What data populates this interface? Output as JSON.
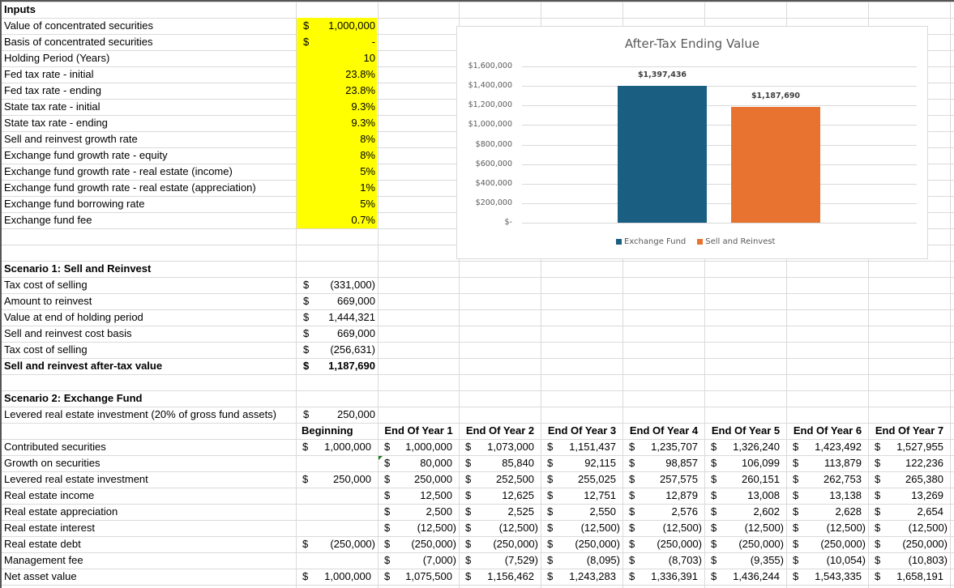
{
  "inputs": {
    "title": "Inputs",
    "rows": [
      {
        "label": "Value of concentrated securities",
        "dollar": "$",
        "value": "1,000,000"
      },
      {
        "label": "Basis of concentrated securities",
        "dollar": "$",
        "value": "-"
      },
      {
        "label": "Holding Period (Years)",
        "dollar": "",
        "value": "10"
      },
      {
        "label": "Fed tax rate - initial",
        "dollar": "",
        "value": "23.8%"
      },
      {
        "label": "Fed tax rate - ending",
        "dollar": "",
        "value": "23.8%"
      },
      {
        "label": "State tax rate - initial",
        "dollar": "",
        "value": "9.3%"
      },
      {
        "label": "State tax rate - ending",
        "dollar": "",
        "value": "9.3%"
      },
      {
        "label": "Sell and reinvest growth rate",
        "dollar": "",
        "value": "8%"
      },
      {
        "label": "Exchange fund growth rate - equity",
        "dollar": "",
        "value": "8%"
      },
      {
        "label": "Exchange fund growth rate - real estate (income)",
        "dollar": "",
        "value": "5%"
      },
      {
        "label": "Exchange fund growth rate - real estate (appreciation)",
        "dollar": "",
        "value": "1%"
      },
      {
        "label": "Exchange fund borrowing rate",
        "dollar": "",
        "value": "5%"
      },
      {
        "label": "Exchange fund fee",
        "dollar": "",
        "value": "0.7%"
      }
    ],
    "highlight_color": "#ffff00"
  },
  "scenario1": {
    "title": "Scenario 1: Sell and Reinvest",
    "rows": [
      {
        "label": "Tax cost of selling",
        "dollar": "$",
        "value": "(331,000)"
      },
      {
        "label": "Amount to reinvest",
        "dollar": "$",
        "value": "669,000"
      },
      {
        "label": "Value at end of holding period",
        "dollar": "$",
        "value": "1,444,321"
      },
      {
        "label": "Sell and reinvest cost basis",
        "dollar": "$",
        "value": "669,000"
      },
      {
        "label": "Tax cost of selling",
        "dollar": "$",
        "value": "(256,631)"
      },
      {
        "label": "Sell and reinvest after-tax value",
        "dollar": "$",
        "value": "1,187,690",
        "bold": true
      }
    ]
  },
  "scenario2": {
    "title": "Scenario 2: Exchange Fund",
    "levered": {
      "label": "Levered real estate investment (20% of gross fund assets)",
      "dollar": "$",
      "value": "250,000"
    },
    "headers": [
      "Beginning",
      "End Of Year 1",
      "End Of Year 2",
      "End Of Year 3",
      "End Of Year 4",
      "End Of Year 5",
      "End Of Year 6",
      "End Of Year 7"
    ],
    "rows": [
      {
        "label": "Contributed securities",
        "values": [
          "1,000,000",
          "1,000,000",
          "1,073,000",
          "1,151,437",
          "1,235,707",
          "1,326,240",
          "1,423,492",
          "1,527,955"
        ]
      },
      {
        "label": "Growth on securities",
        "values": [
          "",
          "80,000",
          "85,840",
          "92,115",
          "98,857",
          "106,099",
          "113,879",
          "122,236"
        ]
      },
      {
        "label": "Levered real estate investment",
        "values": [
          "250,000",
          "250,000",
          "252,500",
          "255,025",
          "257,575",
          "260,151",
          "262,753",
          "265,380"
        ]
      },
      {
        "label": "Real estate income",
        "values": [
          "",
          "12,500",
          "12,625",
          "12,751",
          "12,879",
          "13,008",
          "13,138",
          "13,269"
        ]
      },
      {
        "label": "Real estate appreciation",
        "values": [
          "",
          "2,500",
          "2,525",
          "2,550",
          "2,576",
          "2,602",
          "2,628",
          "2,654"
        ]
      },
      {
        "label": "Real estate interest",
        "values": [
          "",
          "(12,500)",
          "(12,500)",
          "(12,500)",
          "(12,500)",
          "(12,500)",
          "(12,500)",
          "(12,500)"
        ]
      },
      {
        "label": "Real estate debt",
        "values": [
          "(250,000)",
          "(250,000)",
          "(250,000)",
          "(250,000)",
          "(250,000)",
          "(250,000)",
          "(250,000)",
          "(250,000)"
        ]
      },
      {
        "label": "Management fee",
        "values": [
          "",
          "(7,000)",
          "(7,529)",
          "(8,095)",
          "(8,703)",
          "(9,355)",
          "(10,054)",
          "(10,803)"
        ]
      },
      {
        "label": "Net asset value",
        "values": [
          "1,000,000",
          "1,075,500",
          "1,156,462",
          "1,243,283",
          "1,336,391",
          "1,436,244",
          "1,543,335",
          "1,658,191"
        ]
      }
    ]
  },
  "chart": {
    "title": "After-Tax Ending Value",
    "yticks": [
      "$1,600,000",
      "$1,400,000",
      "$1,200,000",
      "$1,000,000",
      "$800,000",
      "$600,000",
      "$400,000",
      "$200,000",
      "$-"
    ],
    "bars": [
      {
        "label": "$1,397,436",
        "name": "Exchange Fund",
        "color": "#1a5e82"
      },
      {
        "label": "$1,187,690",
        "name": "Sell and Reinvest",
        "color": "#e87331"
      }
    ]
  },
  "chart_data": {
    "type": "bar",
    "title": "After-Tax Ending Value",
    "categories": [
      "Exchange Fund",
      "Sell and Reinvest"
    ],
    "series": [
      {
        "name": "Exchange Fund",
        "values": [
          1397436,
          null
        ]
      },
      {
        "name": "Sell and Reinvest",
        "values": [
          null,
          1187690
        ]
      }
    ],
    "data_labels": [
      "$1,397,436",
      "$1,187,690"
    ],
    "xlabel": "",
    "ylabel": "",
    "ylim": [
      0,
      1600000
    ],
    "yticks": [
      "$-",
      "$200,000",
      "$400,000",
      "$600,000",
      "$800,000",
      "$1,000,000",
      "$1,200,000",
      "$1,400,000",
      "$1,600,000"
    ],
    "grid": true,
    "legend_position": "bottom"
  }
}
